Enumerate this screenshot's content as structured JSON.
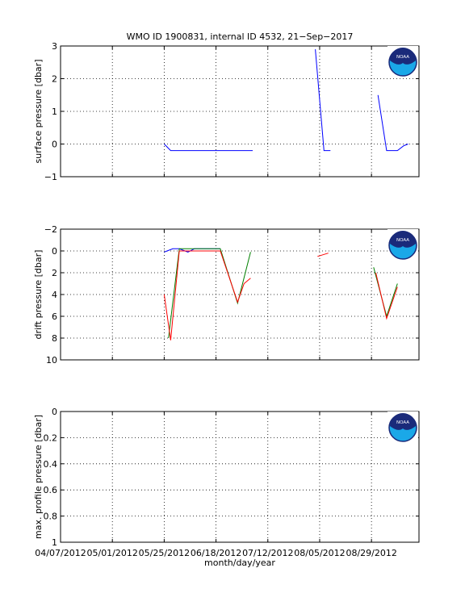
{
  "figure": {
    "title": "WMO ID 1900831, internal ID 4532, 21−Sep−2017",
    "xlabel": "month/day/year",
    "x_tick_labels": [
      "04/07/2012",
      "05/01/2012",
      "05/25/2012",
      "06/18/2012",
      "07/12/2012",
      "08/05/2012",
      "08/29/2012"
    ]
  },
  "chart_data": [
    {
      "type": "line",
      "ylabel": "surface pressure [dbar]",
      "ylim": [
        -1,
        3
      ],
      "yticks": [
        -1,
        0,
        1,
        2,
        3
      ],
      "y_tick_labels": [
        "−1",
        "0",
        "1",
        "2",
        "3"
      ],
      "y_reversed": false,
      "xlim": [
        "2012-04-07",
        "2012-09-20"
      ],
      "grid": true,
      "series": [
        {
          "color": "#0000ff",
          "segments": [
            [
              [
                "2012-05-25",
                0.0
              ],
              [
                "2012-05-28",
                -0.2
              ],
              [
                "2012-07-05",
                -0.2
              ]
            ],
            [
              [
                "2012-08-03",
                2.9
              ],
              [
                "2012-08-07",
                -0.2
              ],
              [
                "2012-08-10",
                -0.2
              ]
            ],
            [
              [
                "2012-09-01",
                1.5
              ],
              [
                "2012-09-05",
                -0.2
              ],
              [
                "2012-09-10",
                -0.2
              ],
              [
                "2012-09-13",
                -0.05
              ],
              [
                "2012-09-15",
                0.0
              ]
            ]
          ]
        }
      ]
    },
    {
      "type": "line",
      "ylabel": "drift pressure [dbar]",
      "ylim": [
        -2,
        10
      ],
      "yticks": [
        -2,
        0,
        2,
        4,
        6,
        8,
        10
      ],
      "y_tick_labels": [
        "−2",
        "0",
        "2",
        "4",
        "6",
        "8",
        "10"
      ],
      "y_reversed": true,
      "xlim": [
        "2012-04-07",
        "2012-09-20"
      ],
      "grid": true,
      "series": [
        {
          "color": "#0000ff",
          "segments": [
            [
              [
                "2012-05-25",
                0.1
              ],
              [
                "2012-05-29",
                -0.2
              ],
              [
                "2012-06-01",
                -0.2
              ],
              [
                "2012-06-05",
                0.1
              ],
              [
                "2012-06-08",
                -0.2
              ],
              [
                "2012-06-20",
                -0.2
              ]
            ]
          ]
        },
        {
          "color": "#008000",
          "segments": [
            [
              [
                "2012-05-27",
                8.0
              ],
              [
                "2012-06-01",
                -0.2
              ],
              [
                "2012-06-20",
                -0.2
              ],
              [
                "2012-06-28",
                4.8
              ],
              [
                "2012-07-04",
                0.1
              ]
            ],
            [
              [
                "2012-08-30",
                1.5
              ],
              [
                "2012-09-05",
                6.0
              ],
              [
                "2012-09-10",
                3.0
              ]
            ]
          ]
        },
        {
          "color": "#ff0000",
          "segments": [
            [
              [
                "2012-05-25",
                4.0
              ],
              [
                "2012-05-28",
                8.2
              ],
              [
                "2012-06-01",
                0.0
              ],
              [
                "2012-06-20",
                0.0
              ],
              [
                "2012-06-28",
                4.7
              ],
              [
                "2012-07-01",
                3.0
              ],
              [
                "2012-07-04",
                2.5
              ]
            ],
            [
              [
                "2012-08-04",
                0.5
              ],
              [
                "2012-08-09",
                0.2
              ]
            ],
            [
              [
                "2012-08-31",
                2.0
              ],
              [
                "2012-09-05",
                6.2
              ],
              [
                "2012-09-10",
                3.3
              ]
            ]
          ]
        }
      ]
    },
    {
      "type": "line",
      "ylabel": "max. profile pressure [dbar]",
      "ylim": [
        0,
        1
      ],
      "yticks": [
        0,
        0.2,
        0.4,
        0.6,
        0.8,
        1
      ],
      "y_tick_labels": [
        "0",
        "0.2",
        "0.4",
        "0.6",
        "0.8",
        "1"
      ],
      "y_reversed": true,
      "xlim": [
        "2012-04-07",
        "2012-09-20"
      ],
      "grid": true,
      "series": []
    }
  ],
  "logo": {
    "text": "NOAA",
    "ring_color": "#1a2a7a",
    "sea_color": "#1aa8e8"
  }
}
